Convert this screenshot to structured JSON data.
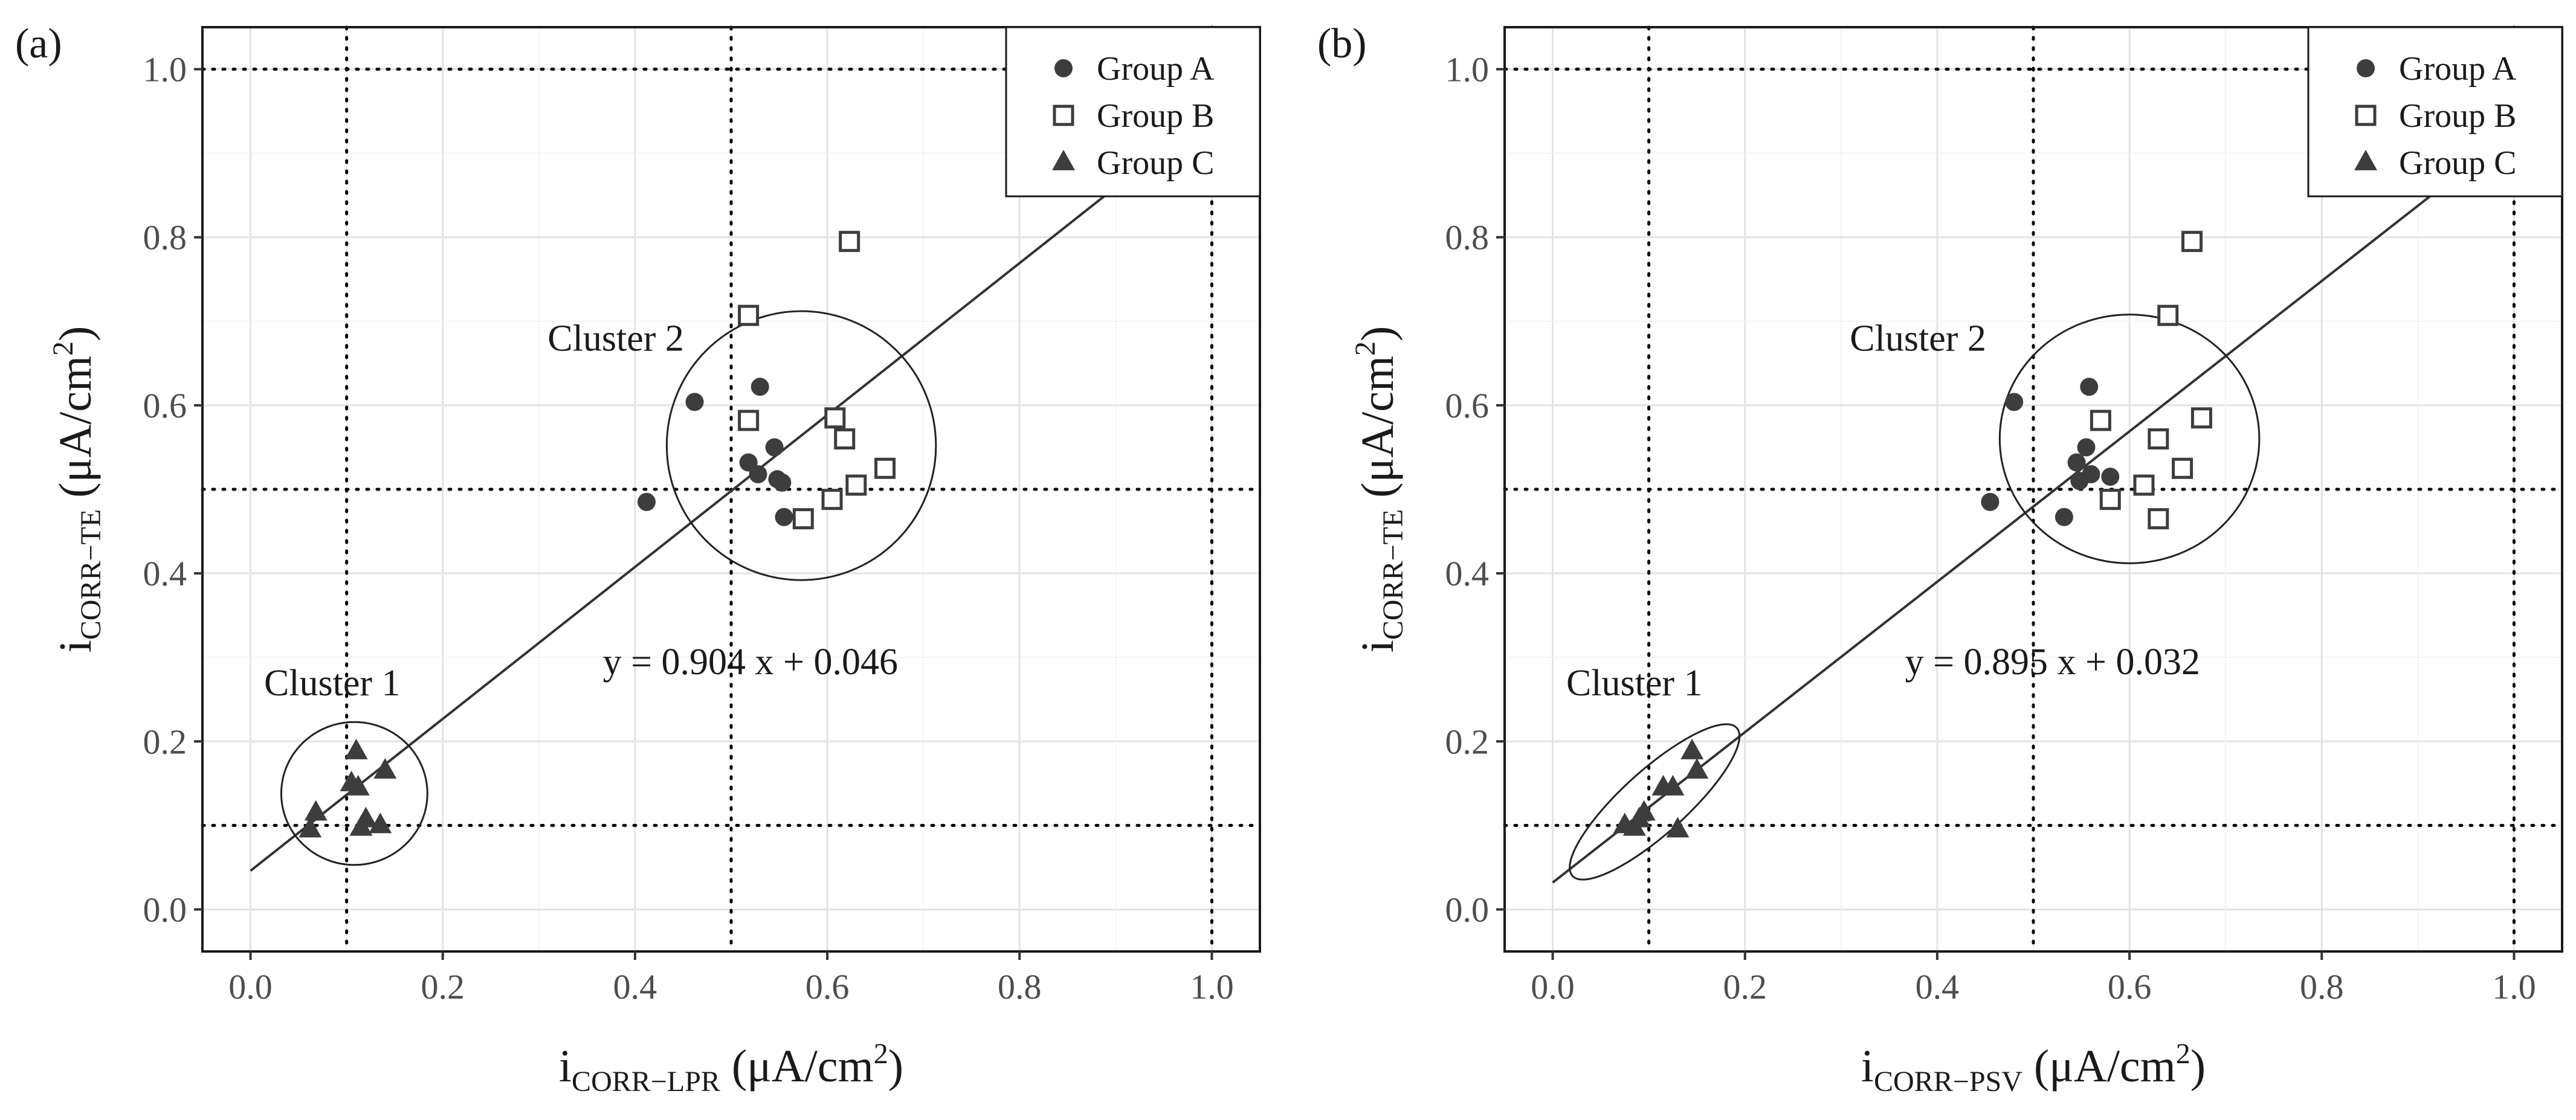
{
  "figure": {
    "panels": [
      {
        "label": "(a)",
        "x_title": {
          "main": "i",
          "sub": "CORR−LPR",
          "unit": "(μA/cm",
          "sup": "2",
          "close": ")"
        }
      },
      {
        "label": "(b)",
        "x_title": {
          "main": "i",
          "sub": "CORR−PSV",
          "unit": "(μA/cm",
          "sup": "2",
          "close": ")"
        }
      }
    ]
  },
  "chart_data": [
    {
      "type": "scatter",
      "panel": "(a)",
      "xlabel": "iCORR−LPR (μA/cm2)",
      "ylabel": "iCORR−TE (μA/cm2)",
      "xlim": [
        -0.05,
        1.05
      ],
      "ylim": [
        -0.05,
        1.05
      ],
      "x_ticks": [
        0.0,
        0.2,
        0.4,
        0.6,
        0.8,
        1.0
      ],
      "y_ticks": [
        0.0,
        0.2,
        0.4,
        0.6,
        0.8,
        1.0
      ],
      "x_tick_labels": [
        "0.0",
        "0.2",
        "0.4",
        "0.6",
        "0.8",
        "1.0"
      ],
      "y_tick_labels": [
        "0.0",
        "0.2",
        "0.4",
        "0.6",
        "0.8",
        "1.0"
      ],
      "grid": true,
      "reference_lines": {
        "x": [
          0.1,
          0.5,
          1.0
        ],
        "y": [
          0.1,
          0.5,
          1.0
        ]
      },
      "legend": {
        "position": "top-right",
        "entries": [
          "Group A",
          "Group B",
          "Group C"
        ]
      },
      "fit": {
        "slope": 0.904,
        "intercept": 0.046,
        "label": "y = 0.904 x + 0.046",
        "label_at": [
          0.52,
          0.28
        ]
      },
      "clusters": [
        {
          "name": "Cluster 1",
          "cx": 0.108,
          "cy": 0.138,
          "rx": 0.076,
          "ry": 0.085,
          "angle": 0,
          "label_at": [
            0.085,
            0.255
          ]
        },
        {
          "name": "Cluster 2",
          "cx": 0.573,
          "cy": 0.552,
          "rx": 0.14,
          "ry": 0.16,
          "angle": 0,
          "label_at": [
            0.38,
            0.665
          ]
        }
      ],
      "series": [
        {
          "name": "Group A",
          "marker": "circle",
          "x": [
            0.412,
            0.462,
            0.518,
            0.528,
            0.53,
            0.545,
            0.548,
            0.553,
            0.555
          ],
          "y": [
            0.485,
            0.604,
            0.532,
            0.518,
            0.622,
            0.55,
            0.512,
            0.508,
            0.467
          ]
        },
        {
          "name": "Group B",
          "marker": "square",
          "x": [
            0.518,
            0.518,
            0.575,
            0.605,
            0.608,
            0.618,
            0.623,
            0.63,
            0.66
          ],
          "y": [
            0.707,
            0.582,
            0.465,
            0.488,
            0.585,
            0.56,
            0.795,
            0.505,
            0.525
          ]
        },
        {
          "name": "Group C",
          "marker": "triangle",
          "x": [
            0.062,
            0.068,
            0.105,
            0.11,
            0.112,
            0.115,
            0.12,
            0.135,
            0.14
          ],
          "y": [
            0.095,
            0.115,
            0.15,
            0.188,
            0.145,
            0.097,
            0.107,
            0.1,
            0.165
          ]
        }
      ]
    },
    {
      "type": "scatter",
      "panel": "(b)",
      "xlabel": "iCORR−PSV (μA/cm2)",
      "ylabel": "iCORR−TE (μA/cm2)",
      "xlim": [
        -0.05,
        1.05
      ],
      "ylim": [
        -0.05,
        1.05
      ],
      "x_ticks": [
        0.0,
        0.2,
        0.4,
        0.6,
        0.8,
        1.0
      ],
      "y_ticks": [
        0.0,
        0.2,
        0.4,
        0.6,
        0.8,
        1.0
      ],
      "x_tick_labels": [
        "0.0",
        "0.2",
        "0.4",
        "0.6",
        "0.8",
        "1.0"
      ],
      "y_tick_labels": [
        "0.0",
        "0.2",
        "0.4",
        "0.6",
        "0.8",
        "1.0"
      ],
      "grid": true,
      "reference_lines": {
        "x": [
          0.1,
          0.5,
          1.0
        ],
        "y": [
          0.1,
          0.5,
          1.0
        ]
      },
      "legend": {
        "position": "top-right",
        "entries": [
          "Group A",
          "Group B",
          "Group C"
        ]
      },
      "fit": {
        "slope": 0.895,
        "intercept": 0.032,
        "label": "y = 0.895 x + 0.032",
        "label_at": [
          0.52,
          0.28
        ]
      },
      "clusters": [
        {
          "name": "Cluster 1",
          "cx": 0.106,
          "cy": 0.128,
          "rx": 0.115,
          "ry": 0.038,
          "angle": 42,
          "label_at": [
            0.085,
            0.255
          ]
        },
        {
          "name": "Cluster 2",
          "cx": 0.6,
          "cy": 0.56,
          "rx": 0.135,
          "ry": 0.148,
          "angle": 0,
          "label_at": [
            0.38,
            0.665
          ]
        }
      ],
      "series": [
        {
          "name": "Group A",
          "marker": "circle",
          "x": [
            0.455,
            0.48,
            0.532,
            0.545,
            0.548,
            0.555,
            0.558,
            0.56,
            0.58
          ],
          "y": [
            0.485,
            0.604,
            0.467,
            0.532,
            0.51,
            0.55,
            0.622,
            0.518,
            0.515
          ]
        },
        {
          "name": "Group B",
          "marker": "square",
          "x": [
            0.57,
            0.58,
            0.615,
            0.63,
            0.63,
            0.64,
            0.655,
            0.665,
            0.675
          ],
          "y": [
            0.582,
            0.488,
            0.505,
            0.465,
            0.56,
            0.707,
            0.525,
            0.795,
            0.585
          ]
        },
        {
          "name": "Group C",
          "marker": "triangle",
          "x": [
            0.075,
            0.085,
            0.09,
            0.095,
            0.115,
            0.125,
            0.13,
            0.145,
            0.15
          ],
          "y": [
            0.1,
            0.097,
            0.107,
            0.115,
            0.145,
            0.145,
            0.095,
            0.188,
            0.165
          ]
        }
      ]
    }
  ]
}
